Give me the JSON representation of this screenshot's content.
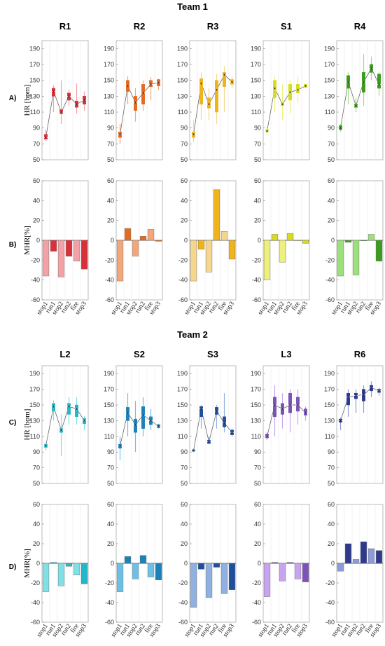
{
  "teams": [
    {
      "title": "Team 1",
      "hr_row_label": "A)",
      "mhr_row_label": "B)",
      "hr_ylabel": "HR [bpm]",
      "mhr_ylabel": "MHR[%]",
      "panels": [
        {
          "name": "R1",
          "color": "#d9303a",
          "light": "#f3a1a6",
          "hr": {
            "medians": [
              78,
              136,
              110,
              130,
              120,
              125
            ],
            "q1": [
              76,
              130,
              108,
              125,
              116,
              120
            ],
            "q3": [
              82,
              140,
              113,
              134,
              124,
              130
            ],
            "wlo": [
              74,
              110,
              95,
              118,
              108,
              112
            ],
            "whi": [
              88,
              144,
              150,
              138,
              146,
              136
            ]
          },
          "mhr": [
            -36,
            -11,
            -37,
            -16,
            -21,
            -29
          ]
        },
        {
          "name": "R2",
          "color": "#e46a22",
          "light": "#f3a779",
          "hr": {
            "medians": [
              82,
              143,
              122,
              134,
              145,
              147
            ],
            "q1": [
              78,
              136,
              112,
              120,
              142,
              143
            ],
            "q3": [
              85,
              150,
              130,
              145,
              150,
              151
            ],
            "wlo": [
              70,
              120,
              98,
              112,
              125,
              138
            ],
            "whi": [
              95,
              155,
              140,
              150,
              154,
              152
            ]
          },
          "mhr": [
            -41,
            12,
            -16,
            4,
            11,
            -1
          ]
        },
        {
          "name": "R3",
          "color": "#f0b418",
          "light": "#f6d68c",
          "hr": {
            "medians": [
              82,
              146,
              120,
              138,
              157,
              148
            ],
            "q1": [
              78,
              120,
              115,
              110,
              142,
              145
            ],
            "q3": [
              85,
              152,
              128,
              150,
              160,
              151
            ],
            "wlo": [
              72,
              100,
              100,
              95,
              110,
              140
            ],
            "whi": [
              100,
              160,
              140,
              158,
              168,
              155
            ]
          },
          "mhr": [
            -41,
            -9,
            -32,
            51,
            9,
            -19
          ]
        },
        {
          "name": "S1",
          "color": "#d7dc1e",
          "light": "#eef07a",
          "hr": {
            "medians": [
              86,
              140,
              120,
              135,
              138,
              143
            ],
            "q1": [
              85,
              128,
              118,
              125,
              134,
              141
            ],
            "q3": [
              88,
              150,
              122,
              145,
              145,
              145
            ],
            "wlo": [
              82,
              110,
              100,
              108,
              122,
              140
            ],
            "whi": [
              92,
              155,
              145,
              150,
              155,
              146
            ]
          },
          "mhr": [
            -40,
            6,
            -22,
            7,
            0,
            -3
          ]
        },
        {
          "name": "R4",
          "color": "#3a9c1c",
          "light": "#9be07a",
          "hr": {
            "medians": [
              90,
              148,
              118,
              148,
              165,
              145
            ],
            "q1": [
              88,
              140,
              116,
              135,
              160,
              140
            ],
            "q3": [
              93,
              156,
              120,
              160,
              170,
              158
            ],
            "wlo": [
              85,
              120,
              110,
              118,
              150,
              130
            ],
            "whi": [
              95,
              160,
              128,
              183,
              180,
              160
            ]
          },
          "mhr": [
            -36,
            -2,
            -35,
            0,
            6,
            -21
          ]
        }
      ]
    },
    {
      "title": "Team 2",
      "hr_row_label": "C)",
      "mhr_row_label": "D)",
      "hr_ylabel": "HR [bpm]",
      "mhr_ylabel": "MHR[%]",
      "panels": [
        {
          "name": "L2",
          "color": "#22b8c8",
          "light": "#7fe0e6",
          "hr": {
            "medians": [
              98,
              148,
              118,
              148,
              145,
              130
            ],
            "q1": [
              96,
              142,
              115,
              138,
              135,
              126
            ],
            "q3": [
              100,
              152,
              120,
              152,
              150,
              133
            ],
            "wlo": [
              92,
              130,
              85,
              125,
              125,
              118
            ],
            "whi": [
              102,
              156,
              138,
              160,
              160,
              136
            ]
          },
          "mhr": [
            -29,
            1,
            -23,
            -3,
            -12,
            -21
          ]
        },
        {
          "name": "S2",
          "color": "#1a82b8",
          "light": "#6cc0e6",
          "hr": {
            "medians": [
              98,
              140,
              125,
              137,
              130,
              123
            ],
            "q1": [
              95,
              130,
              115,
              120,
              125,
              121
            ],
            "q3": [
              100,
              147,
              132,
              148,
              135,
              125
            ],
            "wlo": [
              80,
              110,
              90,
              110,
              118,
              120
            ],
            "whi": [
              110,
              165,
              155,
              160,
              145,
              126
            ]
          },
          "mhr": [
            -29,
            7,
            -16,
            8,
            -14,
            -17
          ]
        },
        {
          "name": "S3",
          "color": "#1e4e9c",
          "light": "#8fb0e0",
          "hr": {
            "medians": [
              92,
              145,
              103,
              142,
              127,
              115
            ],
            "q1": [
              91,
              135,
              101,
              138,
              122,
              112
            ],
            "q3": [
              93,
              148,
              105,
              147,
              135,
              118
            ],
            "wlo": [
              90,
              120,
              100,
              120,
              115,
              110
            ],
            "whi": [
              95,
              150,
              110,
              150,
              165,
              120
            ]
          },
          "mhr": [
            -45,
            -6,
            -35,
            -4,
            -31,
            -27
          ]
        },
        {
          "name": "L3",
          "color": "#7a52b8",
          "light": "#c8a4f0",
          "hr": {
            "medians": [
              110,
              150,
              145,
              150,
              150,
              140
            ],
            "q1": [
              108,
              135,
              138,
              140,
              142,
              137
            ],
            "q3": [
              113,
              160,
              152,
              165,
              160,
              145
            ],
            "wlo": [
              105,
              110,
              120,
              115,
              125,
              130
            ],
            "whi": [
              115,
              175,
              165,
              170,
              170,
              148
            ]
          },
          "mhr": [
            -34,
            1,
            -18,
            1,
            -16,
            -19
          ]
        },
        {
          "name": "R6",
          "color": "#2e3a8c",
          "light": "#8f9ad8",
          "hr": {
            "medians": [
              130,
              160,
              162,
              163,
              172,
              168
            ],
            "q1": [
              128,
              150,
              158,
              155,
              168,
              166
            ],
            "q3": [
              132,
              165,
              165,
              170,
              175,
              170
            ],
            "wlo": [
              118,
              135,
              140,
              140,
              160,
              162
            ],
            "whi": [
              134,
              170,
              170,
              175,
              180,
              172
            ]
          },
          "mhr": [
            -8,
            20,
            4,
            22,
            15,
            13
          ]
        }
      ]
    }
  ],
  "x_categories": [
    "stop1",
    "run1",
    "stop2",
    "run2",
    "fire",
    "stop3"
  ],
  "hr_axis": {
    "min": 50,
    "max": 200,
    "ticks": [
      50,
      70,
      90,
      110,
      130,
      150,
      170,
      190
    ]
  },
  "mhr_axis": {
    "min": -60,
    "max": 60,
    "ticks": [
      -60,
      -40,
      -20,
      0,
      20,
      40,
      60
    ]
  },
  "chart_data": [
    {
      "type": "box",
      "title": "R1",
      "ylabel": "HR [bpm]",
      "categories": [
        "stop1",
        "run1",
        "stop2",
        "run2",
        "fire",
        "stop3"
      ],
      "medians": [
        78,
        136,
        110,
        130,
        120,
        125
      ]
    },
    {
      "type": "bar",
      "title": "R1",
      "ylabel": "MHR[%]",
      "categories": [
        "stop1",
        "run1",
        "stop2",
        "run2",
        "fire",
        "stop3"
      ],
      "values": [
        -36,
        -11,
        -37,
        -16,
        -21,
        -29
      ]
    },
    {
      "type": "box",
      "title": "R2",
      "ylabel": "HR [bpm]",
      "categories": [
        "stop1",
        "run1",
        "stop2",
        "run2",
        "fire",
        "stop3"
      ],
      "medians": [
        82,
        143,
        122,
        134,
        145,
        147
      ]
    },
    {
      "type": "bar",
      "title": "R2",
      "ylabel": "MHR[%]",
      "categories": [
        "stop1",
        "run1",
        "stop2",
        "run2",
        "fire",
        "stop3"
      ],
      "values": [
        -41,
        12,
        -16,
        4,
        11,
        -1
      ]
    },
    {
      "type": "box",
      "title": "R3",
      "ylabel": "HR [bpm]",
      "categories": [
        "stop1",
        "run1",
        "stop2",
        "run2",
        "fire",
        "stop3"
      ],
      "medians": [
        82,
        146,
        120,
        138,
        157,
        148
      ]
    },
    {
      "type": "bar",
      "title": "R3",
      "ylabel": "MHR[%]",
      "categories": [
        "stop1",
        "run1",
        "stop2",
        "run2",
        "fire",
        "stop3"
      ],
      "values": [
        -41,
        -9,
        -32,
        51,
        9,
        -19
      ]
    },
    {
      "type": "box",
      "title": "S1",
      "ylabel": "HR [bpm]",
      "categories": [
        "stop1",
        "run1",
        "stop2",
        "run2",
        "fire",
        "stop3"
      ],
      "medians": [
        86,
        140,
        120,
        135,
        138,
        143
      ]
    },
    {
      "type": "bar",
      "title": "S1",
      "ylabel": "MHR[%]",
      "categories": [
        "stop1",
        "run1",
        "stop2",
        "run2",
        "fire",
        "stop3"
      ],
      "values": [
        -40,
        6,
        -22,
        7,
        0,
        -3
      ]
    },
    {
      "type": "box",
      "title": "R4",
      "ylabel": "HR [bpm]",
      "categories": [
        "stop1",
        "run1",
        "stop2",
        "run2",
        "fire",
        "stop3"
      ],
      "medians": [
        90,
        148,
        118,
        148,
        165,
        145
      ]
    },
    {
      "type": "bar",
      "title": "R4",
      "ylabel": "MHR[%]",
      "categories": [
        "stop1",
        "run1",
        "stop2",
        "run2",
        "fire",
        "stop3"
      ],
      "values": [
        -36,
        -2,
        -35,
        0,
        6,
        -21
      ]
    },
    {
      "type": "box",
      "title": "L2",
      "ylabel": "HR [bpm]",
      "categories": [
        "stop1",
        "run1",
        "stop2",
        "run2",
        "fire",
        "stop3"
      ],
      "medians": [
        98,
        148,
        118,
        148,
        145,
        130
      ]
    },
    {
      "type": "bar",
      "title": "L2",
      "ylabel": "MHR[%]",
      "categories": [
        "stop1",
        "run1",
        "stop2",
        "run2",
        "fire",
        "stop3"
      ],
      "values": [
        -29,
        1,
        -23,
        -3,
        -12,
        -21
      ]
    },
    {
      "type": "box",
      "title": "S2",
      "ylabel": "HR [bpm]",
      "categories": [
        "stop1",
        "run1",
        "stop2",
        "run2",
        "fire",
        "stop3"
      ],
      "medians": [
        98,
        140,
        125,
        137,
        130,
        123
      ]
    },
    {
      "type": "bar",
      "title": "S2",
      "ylabel": "MHR[%]",
      "categories": [
        "stop1",
        "run1",
        "stop2",
        "run2",
        "fire",
        "stop3"
      ],
      "values": [
        -29,
        7,
        -16,
        8,
        -14,
        -17
      ]
    },
    {
      "type": "box",
      "title": "S3",
      "ylabel": "HR [bpm]",
      "categories": [
        "stop1",
        "run1",
        "stop2",
        "run2",
        "fire",
        "stop3"
      ],
      "medians": [
        92,
        145,
        103,
        142,
        127,
        115
      ]
    },
    {
      "type": "bar",
      "title": "S3",
      "ylabel": "MHR[%]",
      "categories": [
        "stop1",
        "run1",
        "stop2",
        "run2",
        "fire",
        "stop3"
      ],
      "values": [
        -45,
        -6,
        -35,
        -4,
        -31,
        -27
      ]
    },
    {
      "type": "box",
      "title": "L3",
      "ylabel": "HR [bpm]",
      "categories": [
        "stop1",
        "run1",
        "stop2",
        "run2",
        "fire",
        "stop3"
      ],
      "medians": [
        110,
        150,
        145,
        150,
        150,
        140
      ]
    },
    {
      "type": "bar",
      "title": "L3",
      "ylabel": "MHR[%]",
      "categories": [
        "stop1",
        "run1",
        "stop2",
        "run2",
        "fire",
        "stop3"
      ],
      "values": [
        -34,
        1,
        -18,
        1,
        -16,
        -19
      ]
    },
    {
      "type": "box",
      "title": "R6",
      "ylabel": "HR [bpm]",
      "categories": [
        "stop1",
        "run1",
        "stop2",
        "run2",
        "fire",
        "stop3"
      ],
      "medians": [
        130,
        160,
        162,
        163,
        172,
        168
      ]
    },
    {
      "type": "bar",
      "title": "R6",
      "ylabel": "MHR[%]",
      "categories": [
        "stop1",
        "run1",
        "stop2",
        "run2",
        "fire",
        "stop3"
      ],
      "values": [
        -8,
        20,
        4,
        22,
        15,
        13
      ]
    }
  ]
}
